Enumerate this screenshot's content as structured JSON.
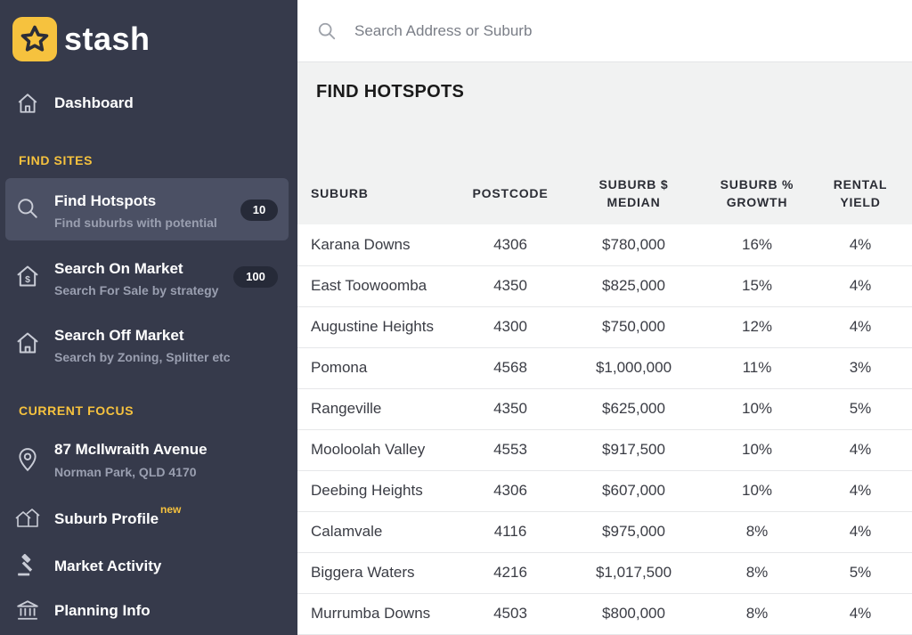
{
  "brand": {
    "name": "stash",
    "color": "#f6c23e"
  },
  "sidebar": {
    "dashboard": {
      "label": "Dashboard",
      "icon": "home-icon"
    },
    "find_sites_heading": "FIND SITES",
    "find_sites": [
      {
        "label": "Find Hotspots",
        "sub": "Find suburbs with potential",
        "count": "10",
        "icon": "search-icon",
        "active": true
      },
      {
        "label": "Search On Market",
        "sub": "Search For Sale by strategy",
        "count": "100",
        "icon": "house-dollar-icon"
      },
      {
        "label": "Search Off Market",
        "sub": "Search by Zoning, Splitter etc",
        "icon": "house-icon"
      }
    ],
    "current_focus_heading": "CURRENT FOCUS",
    "focus": {
      "address": "87 McIlwraith Avenue",
      "locality": "Norman Park, QLD 4170",
      "icon": "location-pin-icon"
    },
    "focus_items": [
      {
        "label": "Suburb Profile",
        "tag": "new",
        "icon": "houses-icon"
      },
      {
        "label": "Market Activity",
        "icon": "gavel-icon"
      },
      {
        "label": "Planning Info",
        "icon": "building-columns-icon"
      }
    ]
  },
  "search": {
    "placeholder": "Search Address or Suburb"
  },
  "main": {
    "title": "FIND HOTSPOTS",
    "columns": {
      "suburb": "SUBURB",
      "postcode": "POSTCODE",
      "median_1": "SUBURB $",
      "median_2": "MEDIAN",
      "growth_1": "SUBURB %",
      "growth_2": "GROWTH",
      "yield_1": "RENTAL",
      "yield_2": "YIELD"
    },
    "rows": [
      {
        "suburb": "Karana Downs",
        "postcode": "4306",
        "median": "$780,000",
        "growth": "16%",
        "yield": "4%"
      },
      {
        "suburb": "East Toowoomba",
        "postcode": "4350",
        "median": "$825,000",
        "growth": "15%",
        "yield": "4%"
      },
      {
        "suburb": "Augustine Heights",
        "postcode": "4300",
        "median": "$750,000",
        "growth": "12%",
        "yield": "4%"
      },
      {
        "suburb": "Pomona",
        "postcode": "4568",
        "median": "$1,000,000",
        "growth": "11%",
        "yield": "3%"
      },
      {
        "suburb": "Rangeville",
        "postcode": "4350",
        "median": "$625,000",
        "growth": "10%",
        "yield": "5%"
      },
      {
        "suburb": "Mooloolah Valley",
        "postcode": "4553",
        "median": "$917,500",
        "growth": "10%",
        "yield": "4%"
      },
      {
        "suburb": "Deebing Heights",
        "postcode": "4306",
        "median": "$607,000",
        "growth": "10%",
        "yield": "4%"
      },
      {
        "suburb": "Calamvale",
        "postcode": "4116",
        "median": "$975,000",
        "growth": "8%",
        "yield": "4%"
      },
      {
        "suburb": "Biggera Waters",
        "postcode": "4216",
        "median": "$1,017,500",
        "growth": "8%",
        "yield": "5%"
      },
      {
        "suburb": "Murrumba Downs",
        "postcode": "4503",
        "median": "$800,000",
        "growth": "8%",
        "yield": "4%"
      }
    ]
  }
}
